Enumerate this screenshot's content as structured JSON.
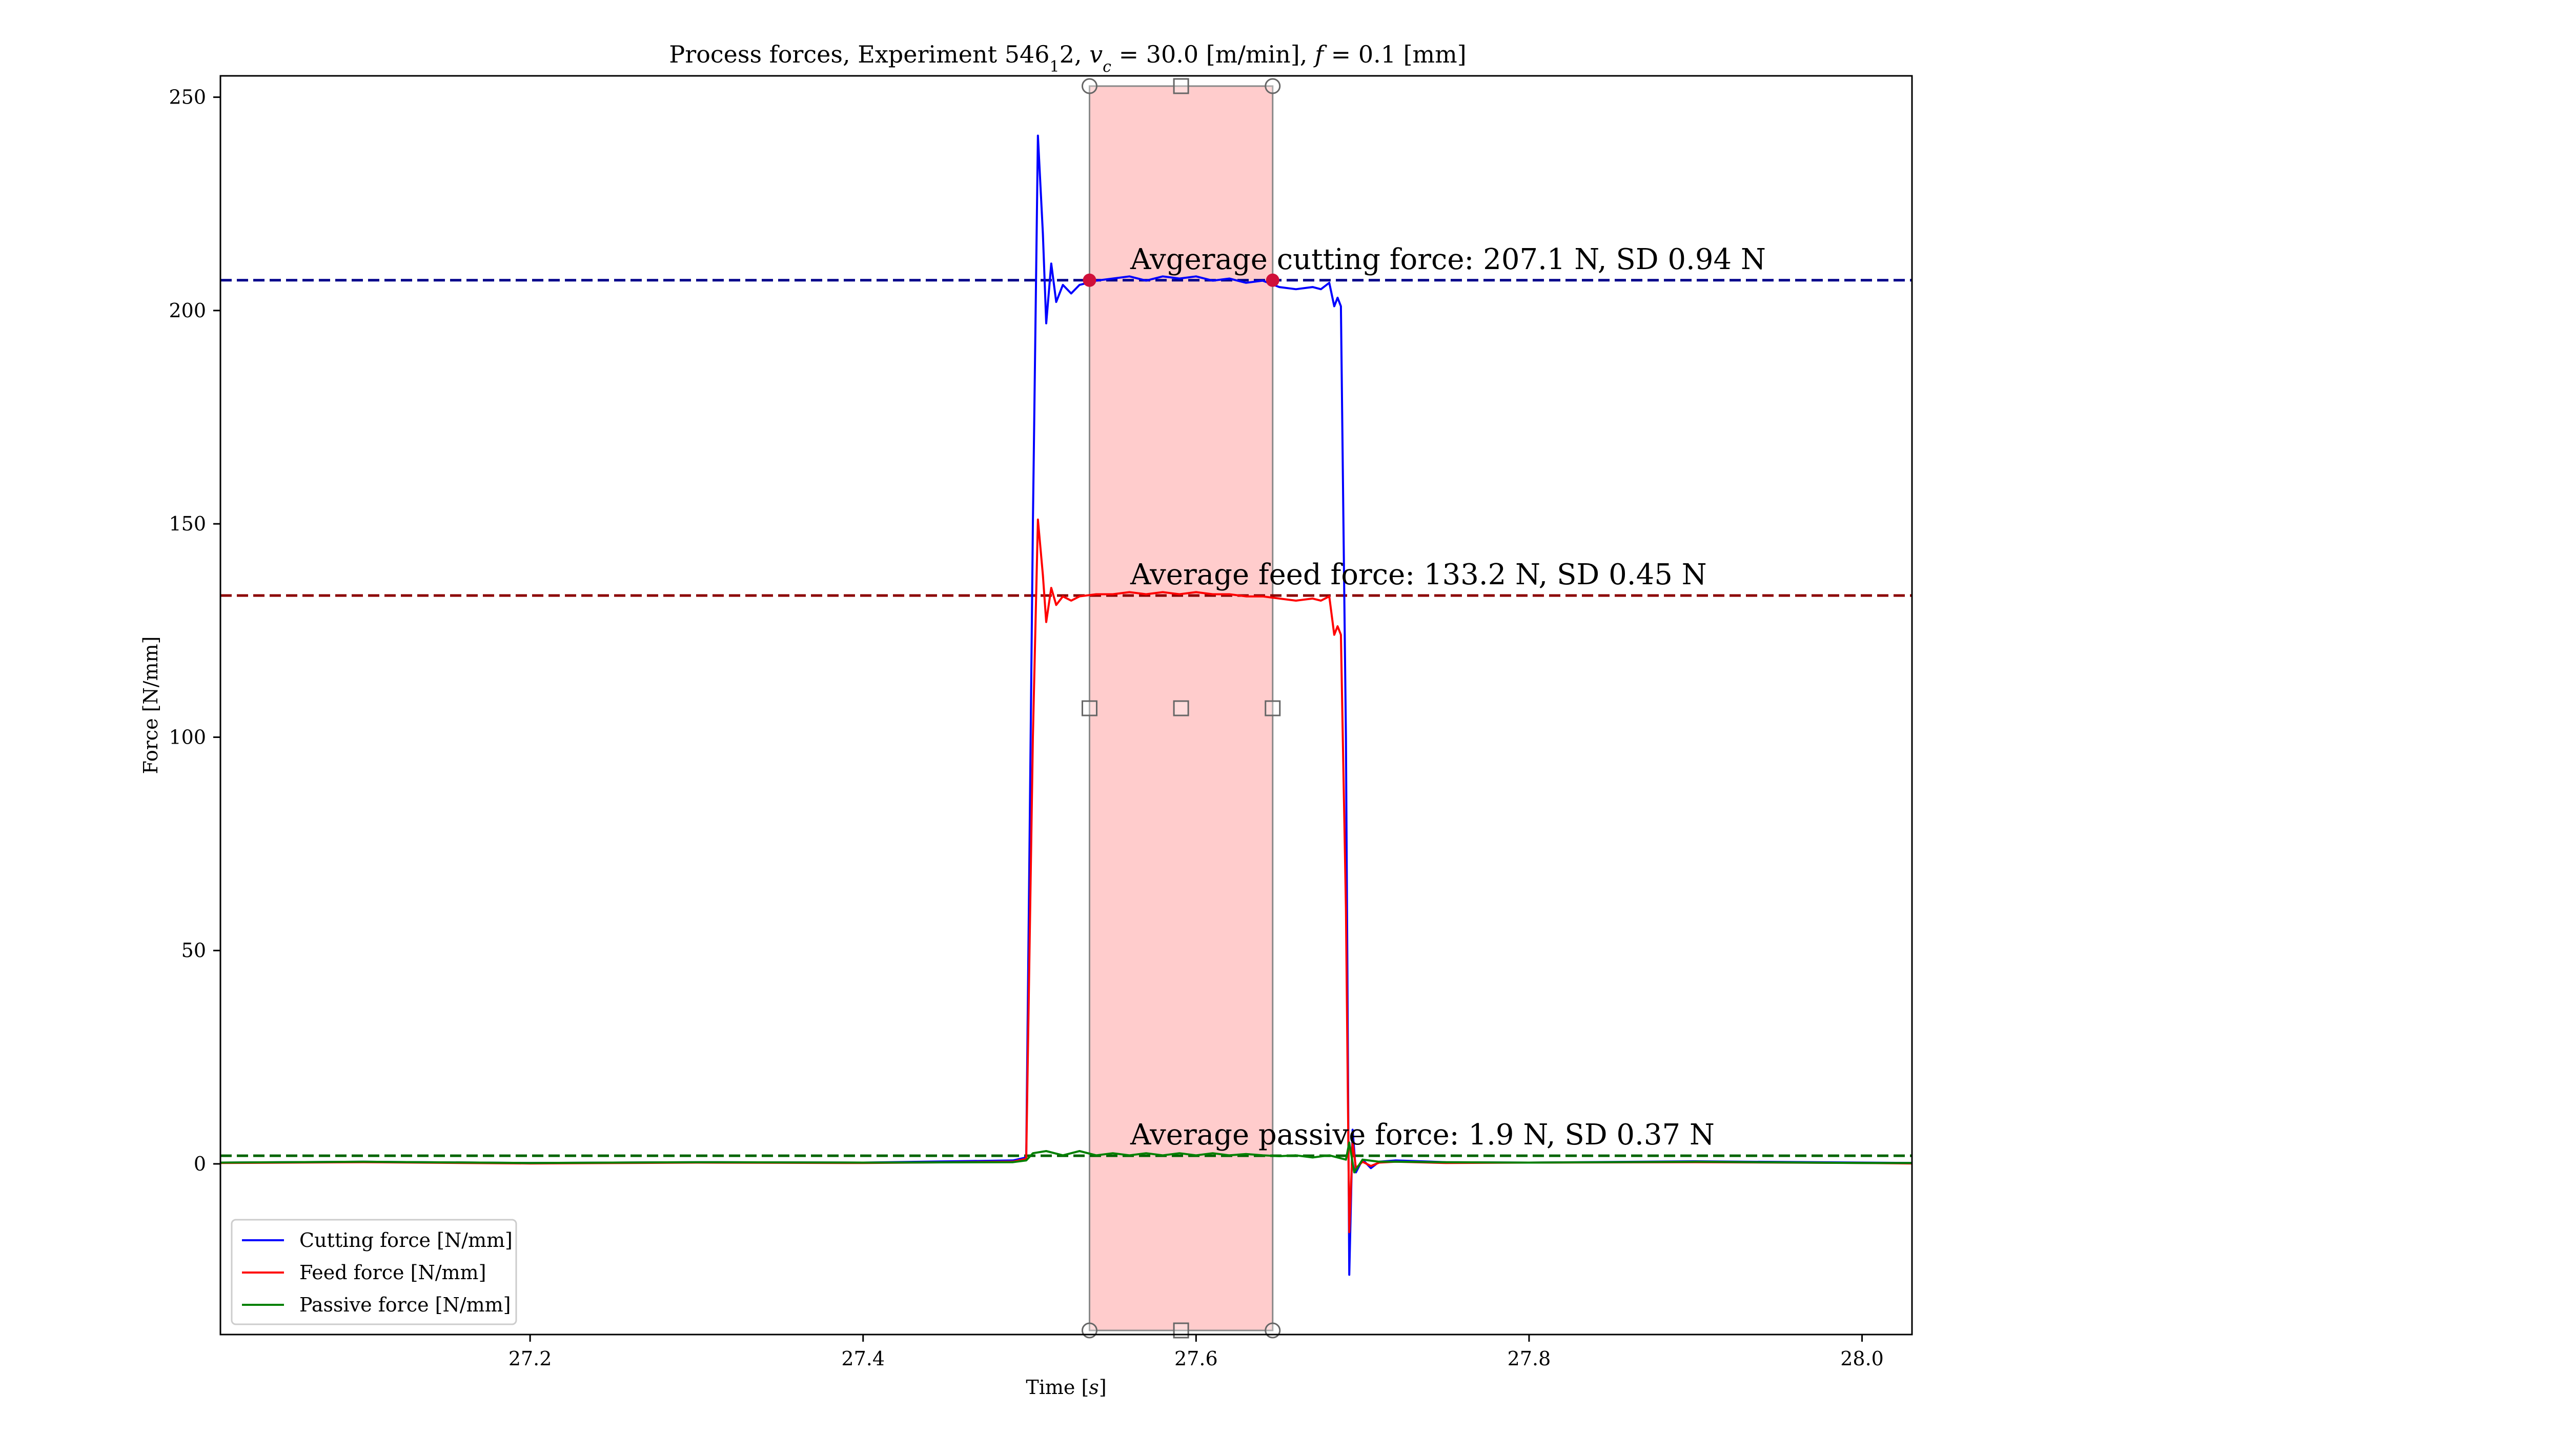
{
  "chart_data": {
    "type": "line",
    "title": "Process forces, Experiment 546_1_2, v_c = 30.0 [m/min], f = 0.1 [mm]",
    "title_parts": {
      "prefix": "Process forces, Experiment 546",
      "sub1": "1",
      "mid1": "2, ",
      "vc_var": "v",
      "vc_sub": "c",
      "mid2": " = 30.0 [m/min], ",
      "f_var": "f",
      "suffix": " = 0.1 [mm]"
    },
    "xlabel": "Time [s]",
    "xlabel_parts": {
      "prefix": "Time [",
      "var": "s",
      "suffix": "]"
    },
    "ylabel": "Force [N/mm]",
    "xlim": [
      27.014,
      28.03
    ],
    "ylim": [
      -40,
      255
    ],
    "xticks": [
      27.2,
      27.4,
      27.6,
      27.8,
      28.0
    ],
    "xtick_labels": [
      "27.2",
      "27.4",
      "27.6",
      "27.8",
      "28.0"
    ],
    "yticks": [
      0,
      50,
      100,
      150,
      200,
      250
    ],
    "ytick_labels": [
      "0",
      "50",
      "100",
      "150",
      "200",
      "250"
    ],
    "grid": false,
    "legend_placement": "lower-left",
    "selection_span": {
      "x_start": 27.536,
      "x_end": 27.646,
      "color": "#ff9999"
    },
    "series": [
      {
        "name": "Cutting force [N/mm]",
        "color": "#0000ff",
        "mean": 207.1,
        "mean_color": "#00008b",
        "annotation": "Avgerage cutting force: 207.1 N, SD 0.94 N",
        "x": [
          27.014,
          27.1,
          27.2,
          27.3,
          27.4,
          27.49,
          27.498,
          27.502,
          27.505,
          27.508,
          27.51,
          27.513,
          27.516,
          27.52,
          27.525,
          27.53,
          27.54,
          27.55,
          27.56,
          27.57,
          27.58,
          27.59,
          27.6,
          27.61,
          27.62,
          27.63,
          27.64,
          27.65,
          27.66,
          27.67,
          27.675,
          27.68,
          27.683,
          27.685,
          27.687,
          27.69,
          27.692,
          27.694,
          27.696,
          27.7,
          27.705,
          27.71,
          27.72,
          27.75,
          27.8,
          27.9,
          28.0,
          28.03
        ],
        "values": [
          0.3,
          0.5,
          0.2,
          0.4,
          0.3,
          0.8,
          1.5,
          150,
          241,
          218,
          197,
          211,
          202,
          206,
          204,
          206,
          207,
          207.5,
          208,
          207,
          208,
          207.5,
          208,
          207,
          207.5,
          206.5,
          207,
          205.5,
          205,
          205.5,
          205,
          206.5,
          201,
          203,
          201,
          100,
          -26,
          8,
          -2,
          1,
          -1,
          0.5,
          0.8,
          0.4,
          0.3,
          0.6,
          0.3,
          0.2
        ]
      },
      {
        "name": "Feed force [N/mm]",
        "color": "#ff0000",
        "mean": 133.2,
        "mean_color": "#8b0000",
        "annotation": "Average feed force: 133.2 N, SD 0.45 N",
        "x": [
          27.014,
          27.1,
          27.2,
          27.3,
          27.4,
          27.49,
          27.498,
          27.502,
          27.505,
          27.508,
          27.51,
          27.513,
          27.516,
          27.52,
          27.525,
          27.53,
          27.54,
          27.55,
          27.56,
          27.57,
          27.58,
          27.59,
          27.6,
          27.61,
          27.62,
          27.63,
          27.64,
          27.65,
          27.66,
          27.67,
          27.675,
          27.68,
          27.683,
          27.685,
          27.687,
          27.69,
          27.692,
          27.694,
          27.696,
          27.7,
          27.705,
          27.71,
          27.72,
          27.75,
          27.8,
          27.9,
          28.0,
          28.03
        ],
        "values": [
          0.2,
          0.4,
          0.1,
          0.3,
          0.2,
          0.5,
          1.2,
          100,
          151,
          138,
          127,
          135,
          131,
          133,
          132,
          133,
          133.5,
          133.5,
          134,
          133.5,
          134,
          133.5,
          134,
          133.5,
          133.5,
          133,
          133,
          132.5,
          132,
          132.5,
          132,
          133,
          124,
          126,
          124,
          60,
          -16,
          5,
          -1,
          0.5,
          -0.5,
          0.3,
          0.5,
          0.2,
          0.3,
          0.4,
          0.2,
          0.1
        ]
      },
      {
        "name": "Passive force [N/mm]",
        "color": "#008000",
        "mean": 1.9,
        "mean_color": "#006400",
        "annotation": "Average passive force: 1.9 N, SD 0.37 N",
        "x": [
          27.014,
          27.1,
          27.2,
          27.3,
          27.4,
          27.49,
          27.498,
          27.502,
          27.51,
          27.52,
          27.53,
          27.54,
          27.55,
          27.56,
          27.57,
          27.58,
          27.59,
          27.6,
          27.61,
          27.62,
          27.63,
          27.64,
          27.65,
          27.66,
          27.67,
          27.68,
          27.69,
          27.692,
          27.695,
          27.7,
          27.71,
          27.72,
          27.75,
          27.8,
          27.9,
          28.0,
          28.03
        ],
        "values": [
          0.3,
          0.5,
          0.2,
          0.4,
          0.3,
          0.4,
          0.8,
          2.5,
          3.0,
          2.0,
          3.0,
          2.0,
          2.5,
          2.0,
          2.5,
          2.0,
          2.5,
          2.0,
          2.5,
          2.0,
          2.3,
          2.0,
          1.8,
          2.0,
          1.5,
          2.0,
          1.0,
          5.0,
          -2.0,
          1.0,
          0.5,
          0.5,
          0.4,
          0.3,
          0.5,
          0.2,
          0.2
        ]
      }
    ]
  }
}
